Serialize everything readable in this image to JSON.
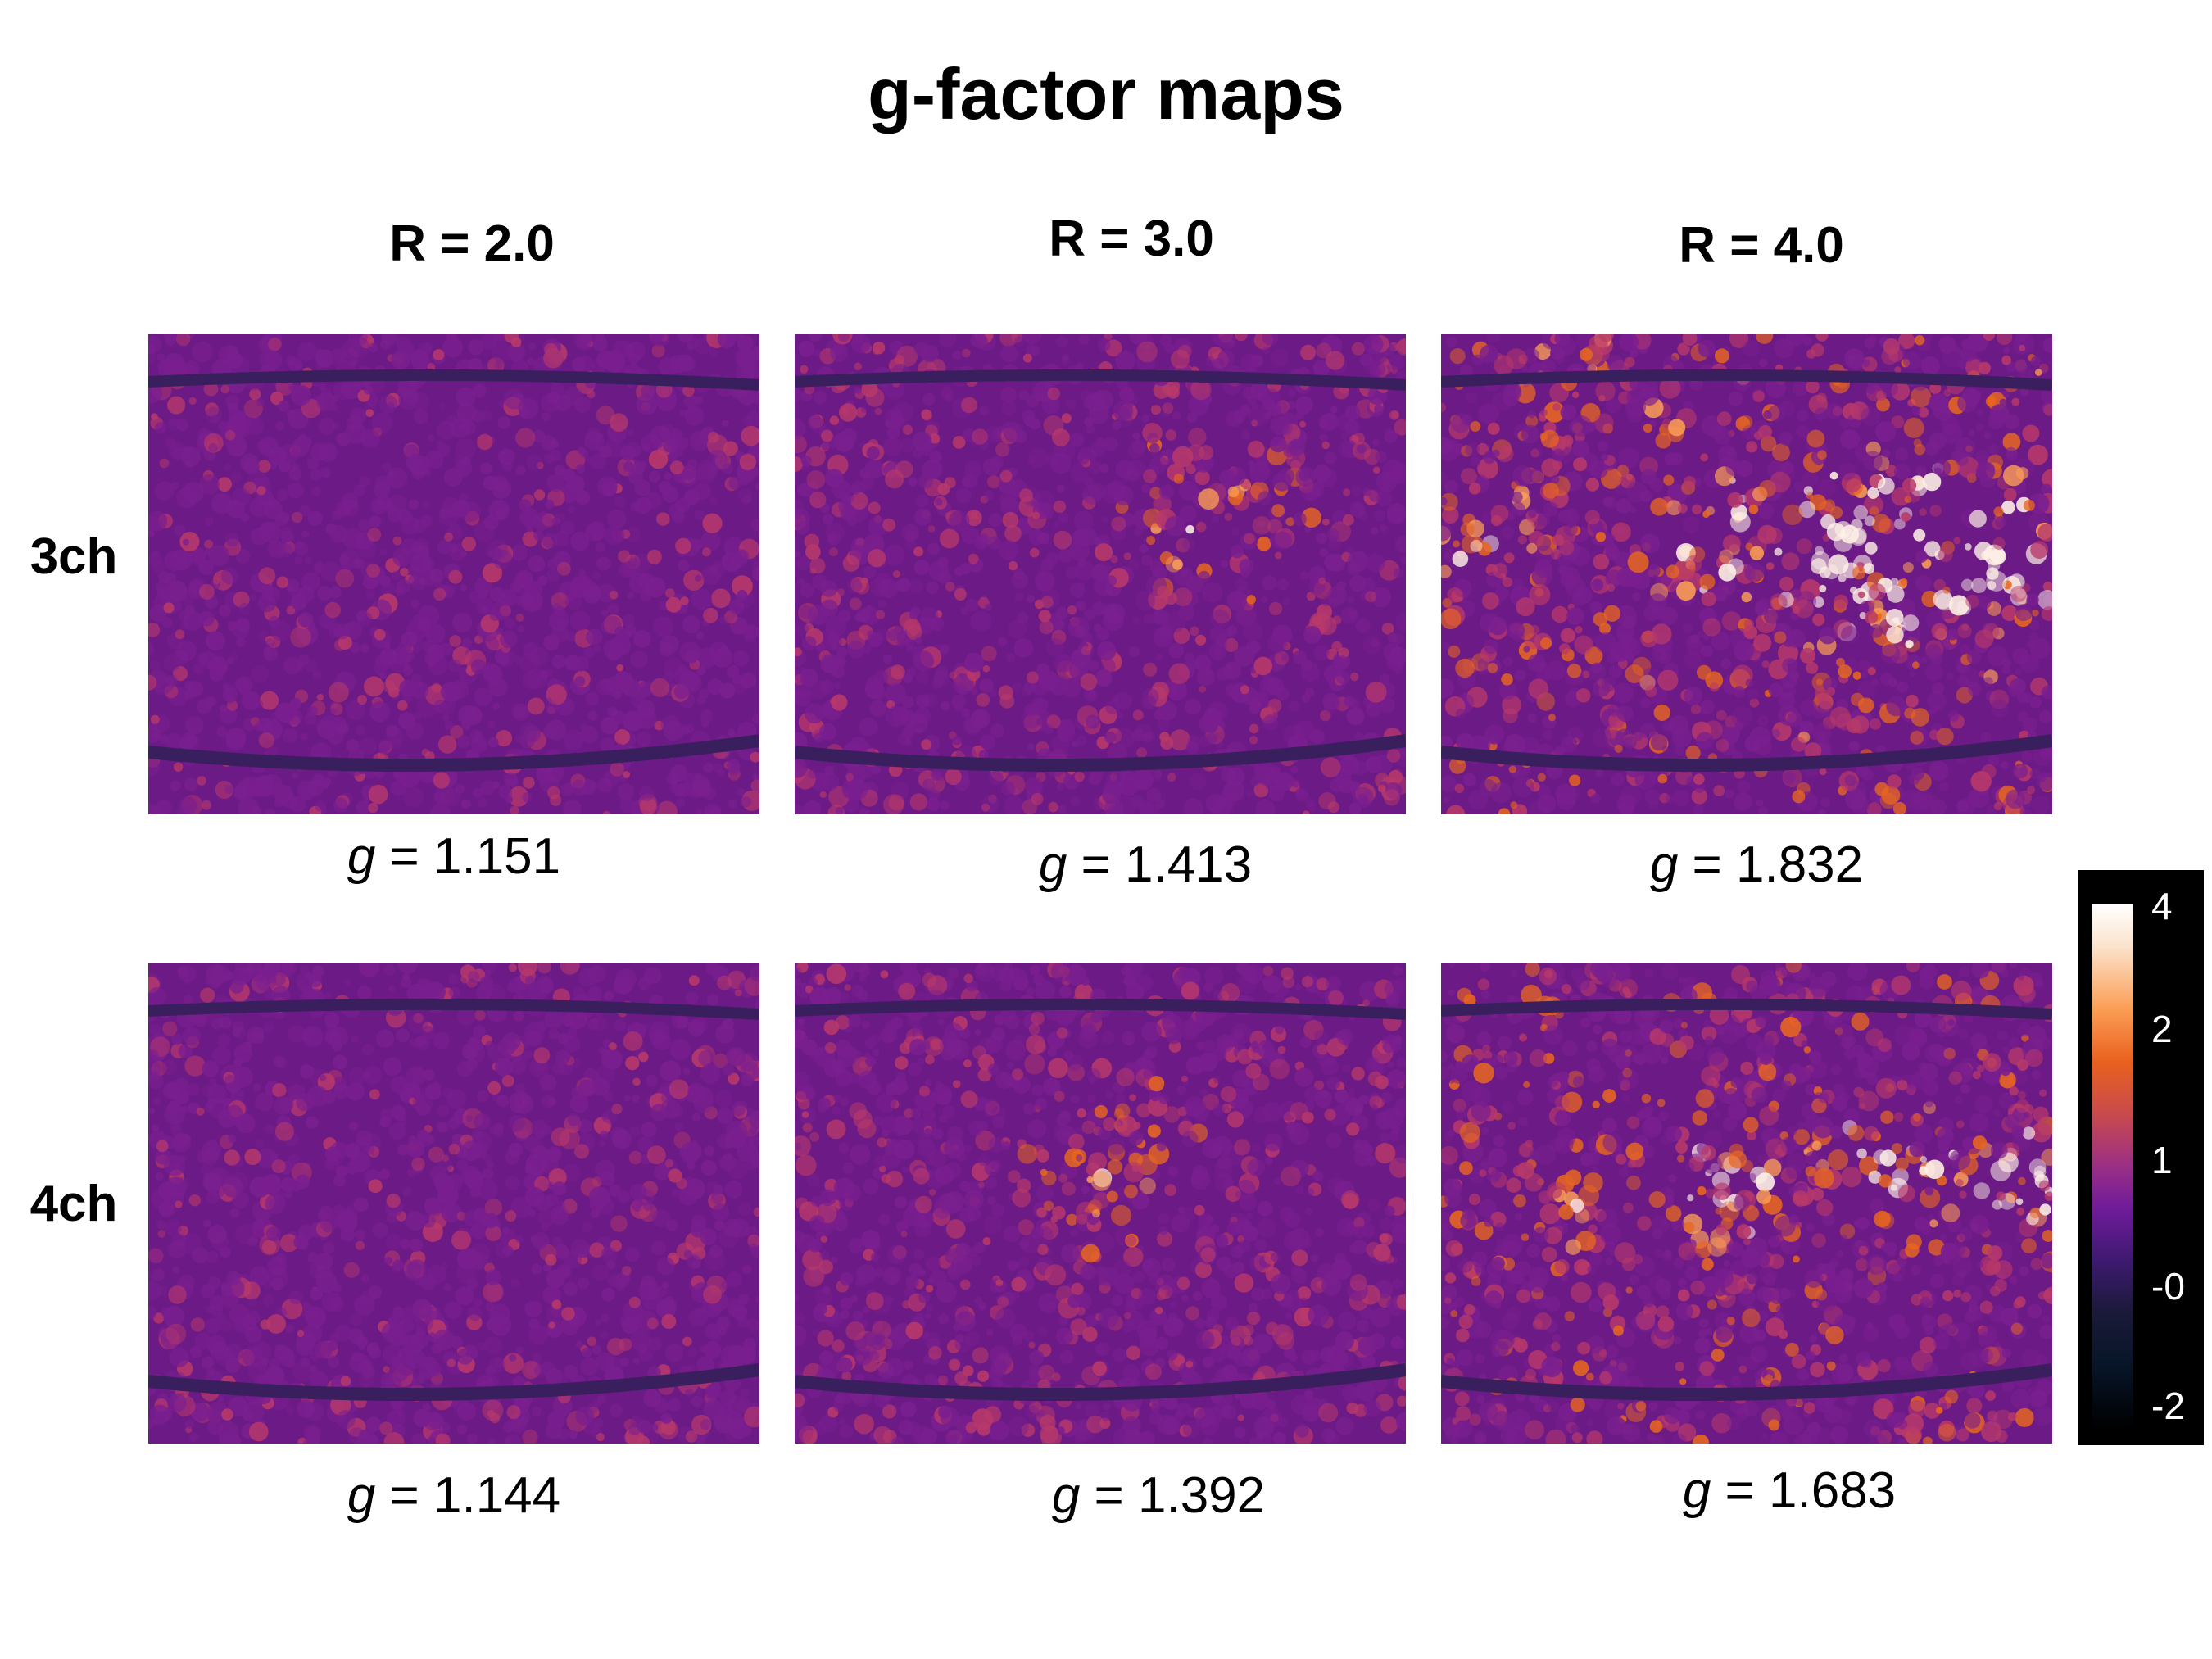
{
  "figure": {
    "title": "g-factor maps"
  },
  "columns": [
    {
      "label": "R = 2.0"
    },
    {
      "label": "R = 3.0"
    },
    {
      "label": "R = 4.0"
    }
  ],
  "rows": [
    {
      "label": "3ch"
    },
    {
      "label": "4ch"
    }
  ],
  "maps": [
    {
      "row": "3ch",
      "column": "R = 2.0",
      "g_symbol": "g",
      "g_text": " = 1.151",
      "g_value": 1.151
    },
    {
      "row": "3ch",
      "column": "R = 3.0",
      "g_symbol": "g",
      "g_text": " = 1.413",
      "g_value": 1.413
    },
    {
      "row": "3ch",
      "column": "R = 4.0",
      "g_symbol": "g",
      "g_text": " = 1.832",
      "g_value": 1.832
    },
    {
      "row": "4ch",
      "column": "R = 2.0",
      "g_symbol": "g",
      "g_text": " = 1.144",
      "g_value": 1.144
    },
    {
      "row": "4ch",
      "column": "R = 3.0",
      "g_symbol": "g",
      "g_text": " = 1.392",
      "g_value": 1.392
    },
    {
      "row": "4ch",
      "column": "R = 4.0",
      "g_symbol": "g",
      "g_text": " = 1.683",
      "g_value": 1.683
    }
  ],
  "colorbar": {
    "ticks": [
      "4",
      "2",
      "1",
      "-0",
      "-2"
    ],
    "colormap": [
      "#000000",
      "#1a1a38",
      "#6f1b9a",
      "#c84a4c",
      "#e9611f",
      "#fb9d55",
      "#ffffff"
    ]
  },
  "colors": {
    "background": "#ffffff",
    "map_base": "#6b1a86",
    "map_dark_band": "#3a1f5e",
    "map_hot": "#f07a2a",
    "map_hottest": "#ffffff"
  }
}
